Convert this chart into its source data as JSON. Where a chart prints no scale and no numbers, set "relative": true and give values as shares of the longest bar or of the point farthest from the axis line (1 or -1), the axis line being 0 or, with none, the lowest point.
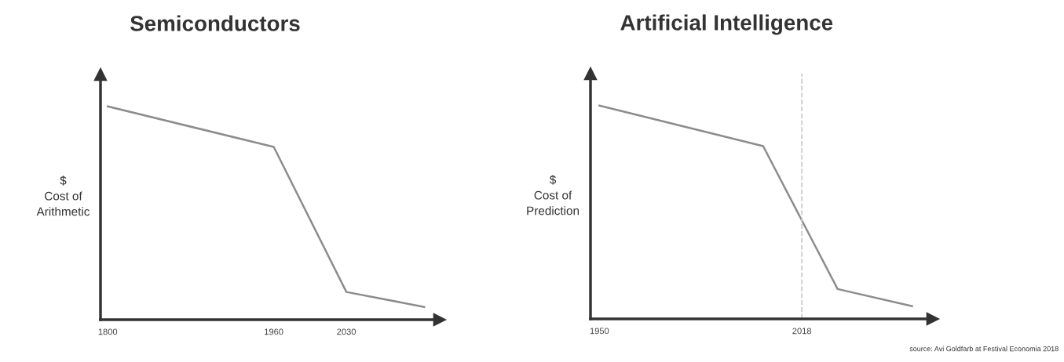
{
  "chart_data": [
    {
      "type": "line",
      "title": "Semiconductors",
      "ylabel": "$\nCost of\nArithmetic",
      "relative": true,
      "x": [
        1800,
        1960,
        2030,
        2105
      ],
      "xlim": [
        1793,
        2120
      ],
      "xticks": [
        1800,
        1960,
        2030
      ],
      "series": [
        {
          "color": "#8c8c8c",
          "values": [
            1,
            0.81,
            0.13,
            0.06
          ]
        }
      ],
      "grid": false,
      "legend": false,
      "marker": "none",
      "line_style": "solid",
      "tick_labels": "x"
    },
    {
      "type": "line",
      "title": "Artificial Intelligence",
      "ylabel": "$\nCost of\nPrediction",
      "relative": true,
      "x": [
        1950,
        2005,
        2030,
        2055
      ],
      "xlim": [
        1947,
        2062
      ],
      "xticks": [
        1950,
        2018
      ],
      "series": [
        {
          "color": "#8c8c8c",
          "values": [
            1,
            0.81,
            0.14,
            0.06
          ]
        }
      ],
      "ref_lines": [
        {
          "axis": "x",
          "value": 2018,
          "color": "#c8c8c8",
          "line_style": "dashed"
        }
      ],
      "annotations": [
        "source: Avi Goldfarb at Festival Economia 2018"
      ],
      "grid": false,
      "legend": false,
      "marker": "none",
      "line_style": "solid",
      "tick_labels": "x"
    }
  ]
}
